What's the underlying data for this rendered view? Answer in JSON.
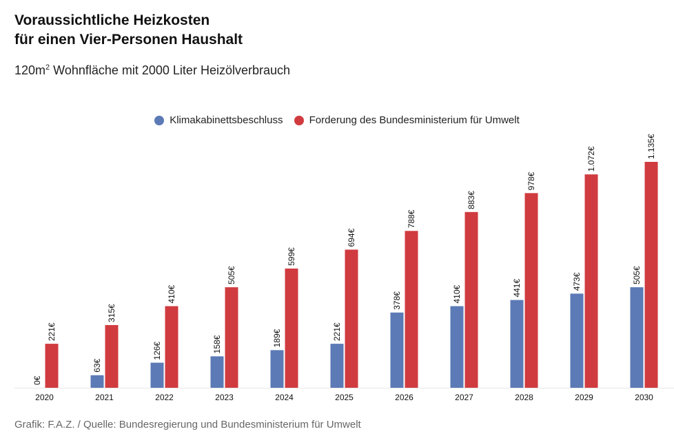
{
  "header": {
    "title_line1": "Voraussichtliche Heizkosten",
    "title_line2": "für einen Vier-Personen Haushalt",
    "subtitle_pre": "120m",
    "subtitle_sup": "2",
    "subtitle_post": " Wohnfläche mit 2000 Liter Heizölverbrauch"
  },
  "legend": {
    "items": [
      {
        "label": "Klimakabinettsbeschluss",
        "color": "#5b7ab6"
      },
      {
        "label": "Forderung des Bundesministerium für Umwelt",
        "color": "#d03b3f"
      }
    ]
  },
  "footer": {
    "source": "Grafik: F.A.Z. / Quelle: Bundesregierung und Bundesministerium für Umwelt"
  },
  "chart_data": {
    "type": "bar",
    "title": "Voraussichtliche Heizkosten für einen Vier-Personen Haushalt",
    "subtitle": "120m2 Wohnfläche mit 2000 Liter Heizölverbrauch",
    "categories": [
      "2020",
      "2021",
      "2022",
      "2023",
      "2024",
      "2025",
      "2026",
      "2027",
      "2028",
      "2029",
      "2030"
    ],
    "series": [
      {
        "name": "Klimakabinettsbeschluss",
        "color": "#5b7ab6",
        "values": [
          0,
          63,
          126,
          158,
          189,
          221,
          378,
          410,
          441,
          473,
          505
        ],
        "labels": [
          "0€",
          "63€",
          "126€",
          "158€",
          "189€",
          "221€",
          "378€",
          "410€",
          "441€",
          "473€",
          "505€"
        ]
      },
      {
        "name": "Forderung des Bundesministerium für Umwelt",
        "color": "#d03b3f",
        "values": [
          221,
          315,
          410,
          505,
          599,
          694,
          788,
          883,
          978,
          1072,
          1135
        ],
        "labels": [
          "221€",
          "315€",
          "410€",
          "505€",
          "599€",
          "694€",
          "788€",
          "883€",
          "978€",
          "1.072€",
          "1.135€"
        ]
      }
    ],
    "xlabel": "",
    "ylabel": "",
    "ylim": [
      0,
      1135
    ],
    "grid": false,
    "legend_position": "top-center"
  }
}
